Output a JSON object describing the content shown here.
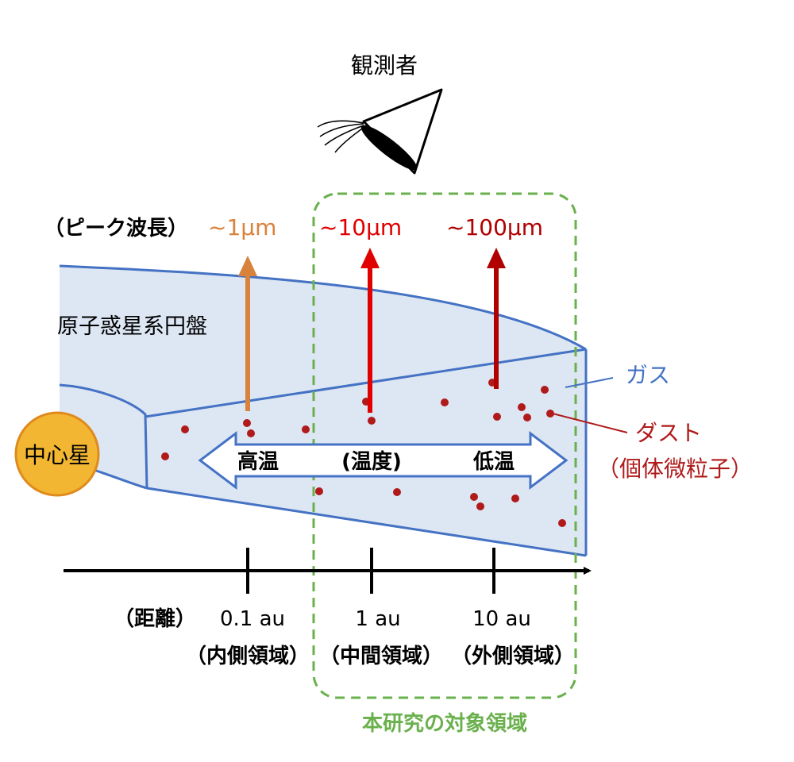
{
  "observer": {
    "label": "観測者"
  },
  "peak_wavelength": {
    "label": "（ピーク波長）",
    "values": [
      {
        "text": "~1µm",
        "color": "#d9823b"
      },
      {
        "text": "~10µm",
        "color": "#e00000"
      },
      {
        "text": "~100µm",
        "color": "#b00000"
      }
    ]
  },
  "disk": {
    "label": "原子惑星系円盤"
  },
  "star": {
    "label": "中心星",
    "fill": "#f2b632",
    "stroke": "#e08a1e"
  },
  "gas": {
    "label": "ガス",
    "color": "#4472c4"
  },
  "dust": {
    "label": "ダスト",
    "sublabel": "（個体微粒子）",
    "color": "#b01a1a"
  },
  "temperature": {
    "high": "高温",
    "middle": "(温度)",
    "low": "低温"
  },
  "distance": {
    "label": "（距離）",
    "ticks": [
      "0.1 au",
      "1 au",
      "10 au"
    ],
    "regions": [
      "（内側領域）",
      "（中間領域）",
      "（外側領域）"
    ]
  },
  "study_region": {
    "label": "本研究の対象領域",
    "color": "#6ab04c"
  },
  "colors": {
    "disk_fill": "#dde6f3",
    "disk_edge": "#4472c4",
    "axis": "#000000"
  }
}
